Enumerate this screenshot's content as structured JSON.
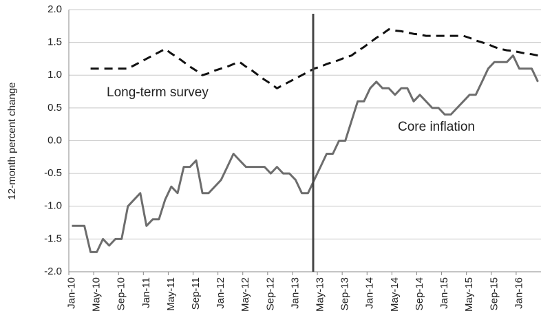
{
  "chart_data": {
    "type": "line",
    "ylabel": "12-month percent change",
    "annotations": [
      "Long-term survey",
      "Core inflation"
    ],
    "categories": [
      "Jan-10",
      null,
      null,
      null,
      "May-10",
      null,
      null,
      null,
      "Sep-10",
      null,
      null,
      null,
      "Jan-11",
      null,
      null,
      null,
      "May-11",
      null,
      null,
      null,
      "Sep-11",
      null,
      null,
      null,
      "Jan-12",
      null,
      null,
      null,
      "May-12",
      null,
      null,
      null,
      "Sep-12",
      null,
      null,
      null,
      "Jan-13",
      null,
      null,
      null,
      "May-13",
      null,
      null,
      null,
      "Sep-13",
      null,
      null,
      null,
      "Jan-14",
      null,
      null,
      null,
      "May-14",
      null,
      null,
      null,
      "Sep-14",
      null,
      null,
      null,
      "Jan-15",
      null,
      null,
      null,
      "May-15",
      null,
      null,
      null,
      "Sep-15",
      null,
      null,
      null,
      "Jan-16",
      null,
      null,
      null
    ],
    "series": [
      {
        "name": "Core inflation",
        "color": "#6d6d6d",
        "dash": false,
        "values": [
          -1.3,
          -1.3,
          -1.3,
          -1.7,
          -1.7,
          -1.5,
          -1.6,
          -1.5,
          -1.5,
          -1.0,
          -0.9,
          -0.8,
          -1.3,
          -1.2,
          -1.2,
          -0.9,
          -0.7,
          -0.8,
          -0.4,
          -0.4,
          -0.3,
          -0.8,
          -0.8,
          -0.7,
          -0.6,
          -0.4,
          -0.2,
          -0.3,
          -0.4,
          -0.4,
          -0.4,
          -0.4,
          -0.5,
          -0.4,
          -0.5,
          -0.5,
          -0.6,
          -0.8,
          -0.8,
          -0.6,
          -0.4,
          -0.2,
          -0.2,
          0.0,
          0.0,
          0.3,
          0.6,
          0.6,
          0.8,
          0.9,
          0.8,
          0.8,
          0.7,
          0.8,
          0.8,
          0.6,
          0.7,
          0.6,
          0.5,
          0.5,
          0.4,
          0.4,
          0.5,
          0.6,
          0.7,
          0.7,
          0.9,
          1.1,
          1.2,
          1.2,
          1.2,
          1.3,
          1.1,
          1.1,
          1.1,
          0.9
        ]
      },
      {
        "name": "Long-term survey",
        "color": "#111111",
        "dash": true,
        "values": [
          null,
          null,
          null,
          1.1,
          1.1,
          1.1,
          1.1,
          1.1,
          1.1,
          1.1,
          1.15,
          1.2,
          1.25,
          1.3,
          1.35,
          1.4,
          1.33,
          1.27,
          1.2,
          1.13,
          1.07,
          1.0,
          1.03,
          1.07,
          1.1,
          1.13,
          1.17,
          1.2,
          1.13,
          1.07,
          1.0,
          0.93,
          0.87,
          0.8,
          0.85,
          0.9,
          0.95,
          1.0,
          1.05,
          1.1,
          1.13,
          1.17,
          1.2,
          1.23,
          1.27,
          1.3,
          1.37,
          1.43,
          1.5,
          1.57,
          1.63,
          1.7,
          1.68,
          1.67,
          1.65,
          1.63,
          1.62,
          1.6,
          1.6,
          1.6,
          1.6,
          1.6,
          1.6,
          1.6,
          1.57,
          1.53,
          1.5,
          1.47,
          1.43,
          1.4,
          1.38,
          1.37,
          1.35,
          1.33,
          1.32,
          1.3
        ]
      }
    ],
    "ylim": [
      -2,
      2
    ],
    "yticks": [
      {
        "value": 2,
        "label": "2.0"
      },
      1.5,
      {
        "value": 1,
        "label": "1.0"
      },
      0.5,
      {
        "value": 0,
        "label": "0.0"
      },
      -0.5,
      {
        "value": -1,
        "label": "-1.0"
      },
      -1.5,
      {
        "value": -2,
        "label": "-2.0"
      }
    ],
    "grid": true
  }
}
